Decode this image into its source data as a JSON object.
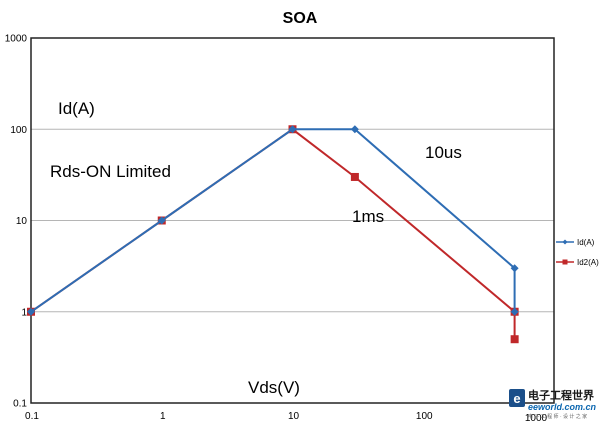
{
  "chart_data": {
    "type": "line",
    "title": "SOA",
    "xlabel": "Vds(V)",
    "ylabel": "Id(A)",
    "x_scale": "log",
    "y_scale": "log",
    "xlim": [
      0.1,
      1000
    ],
    "ylim": [
      0.1,
      1000
    ],
    "x_ticks": [
      "0.1",
      "1",
      "10",
      "100",
      "1000"
    ],
    "y_ticks": [
      "0.1",
      "1",
      "10",
      "100",
      "1000"
    ],
    "grid": "horizontal",
    "legend_position": "right",
    "series": [
      {
        "name": "Id(A)",
        "color": "#2e6db4",
        "marker": "diamond",
        "points": [
          [
            0.1,
            1
          ],
          [
            1,
            10
          ],
          [
            10,
            100
          ],
          [
            30,
            100
          ],
          [
            500,
            3
          ],
          [
            500,
            1
          ]
        ]
      },
      {
        "name": "Id2(A)",
        "color": "#c0282a",
        "marker": "square",
        "points": [
          [
            0.1,
            1
          ],
          [
            1,
            10
          ],
          [
            10,
            100
          ],
          [
            30,
            30
          ],
          [
            500,
            1
          ],
          [
            500,
            0.5
          ]
        ]
      }
    ],
    "annotations": [
      {
        "id": "rds",
        "text": "Rds-ON Limited"
      },
      {
        "id": "t10us",
        "text": "10us"
      },
      {
        "id": "t1ms",
        "text": "1ms"
      }
    ]
  },
  "watermark": {
    "text_cn": "电子工程世界",
    "text_en": "eeworld.com.cn",
    "text_sub": "电 子 工 程 师 · 设 计 之 家"
  }
}
